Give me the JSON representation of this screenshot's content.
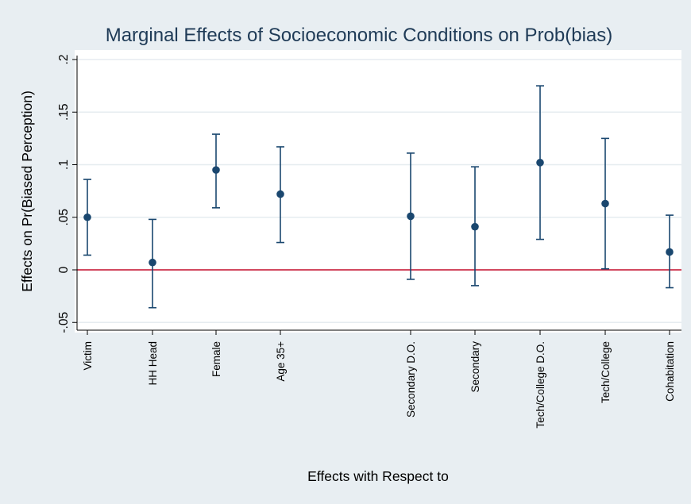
{
  "chart_data": {
    "type": "scatter",
    "title": "Marginal Effects of Socioeconomic Conditions on Prob(bias)",
    "xlabel": "Effects with Respect to",
    "ylabel": "Effects on Pr(Biased Perception)",
    "ylim": [
      -0.05,
      0.2
    ],
    "yticks": [
      -0.05,
      0,
      0.05,
      0.1,
      0.15,
      0.2
    ],
    "ytick_labels": [
      "-.05",
      "0",
      ".05",
      ".1",
      ".15",
      ".2"
    ],
    "grid": true,
    "reference_line": {
      "y": 0,
      "color": "#c8102e"
    },
    "marker_color": "#1a476f",
    "points": [
      {
        "label": "Victim",
        "estimate": 0.05,
        "lower": 0.014,
        "upper": 0.086
      },
      {
        "label": "HH Head",
        "estimate": 0.007,
        "lower": -0.036,
        "upper": 0.048
      },
      {
        "label": "Female",
        "estimate": 0.095,
        "lower": 0.059,
        "upper": 0.129
      },
      {
        "label": "Age 35+",
        "estimate": 0.072,
        "lower": 0.026,
        "upper": 0.117
      },
      {
        "label": "Secondary D.O.",
        "estimate": 0.051,
        "lower": -0.009,
        "upper": 0.111
      },
      {
        "label": "Secondary",
        "estimate": 0.041,
        "lower": -0.015,
        "upper": 0.098
      },
      {
        "label": "Tech/College D.O.",
        "estimate": 0.102,
        "lower": 0.029,
        "upper": 0.175
      },
      {
        "label": "Tech/College",
        "estimate": 0.063,
        "lower": 0.001,
        "upper": 0.125
      },
      {
        "label": "Cohabitation",
        "estimate": 0.017,
        "lower": -0.017,
        "upper": 0.052
      }
    ]
  }
}
